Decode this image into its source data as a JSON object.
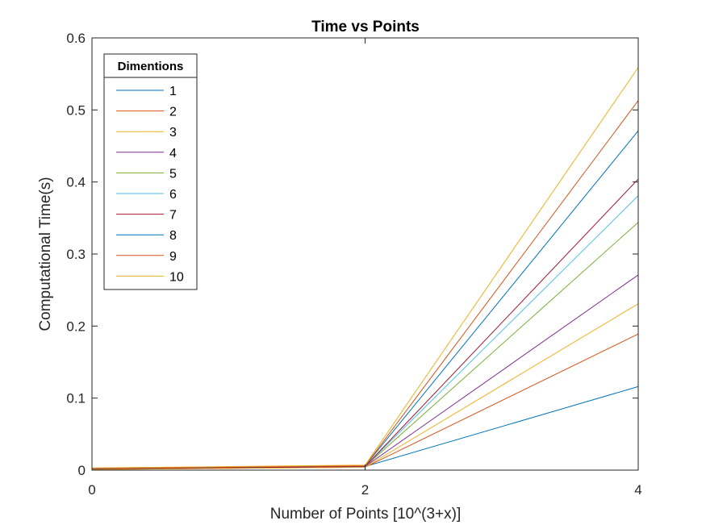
{
  "chart_data": {
    "type": "line",
    "title": "Time vs Points",
    "xlabel": "Number of Points [10^(3+x)]",
    "ylabel": "Computational Time(s)",
    "xlim": [
      0,
      4
    ],
    "ylim": [
      0,
      0.6
    ],
    "xticks": [
      "0",
      "2",
      "4"
    ],
    "yticks": [
      "0",
      "0.1",
      "0.2",
      "0.3",
      "0.4",
      "0.5",
      "0.6"
    ],
    "grid": false,
    "legend": {
      "title": "Dimentions",
      "placement": "top-left"
    },
    "x": [
      0,
      2,
      4
    ],
    "series": [
      {
        "name": "1",
        "color": "#0072BD",
        "values": [
          0.002,
          0.005,
          0.116
        ]
      },
      {
        "name": "2",
        "color": "#D95319",
        "values": [
          0.001,
          0.004,
          0.189
        ]
      },
      {
        "name": "3",
        "color": "#EDB120",
        "values": [
          0.001,
          0.004,
          0.231
        ]
      },
      {
        "name": "4",
        "color": "#7E2F8E",
        "values": [
          0.002,
          0.005,
          0.271
        ]
      },
      {
        "name": "5",
        "color": "#77AC30",
        "values": [
          0.002,
          0.005,
          0.344
        ]
      },
      {
        "name": "6",
        "color": "#4DBEEE",
        "values": [
          0.002,
          0.005,
          0.381
        ]
      },
      {
        "name": "7",
        "color": "#A2142F",
        "values": [
          0.002,
          0.005,
          0.404
        ]
      },
      {
        "name": "8",
        "color": "#0072BD",
        "values": [
          0.003,
          0.006,
          0.471
        ]
      },
      {
        "name": "9",
        "color": "#D95319",
        "values": [
          0.003,
          0.006,
          0.513
        ]
      },
      {
        "name": "10",
        "color": "#EDB120",
        "values": [
          0.003,
          0.007,
          0.559
        ]
      }
    ]
  }
}
